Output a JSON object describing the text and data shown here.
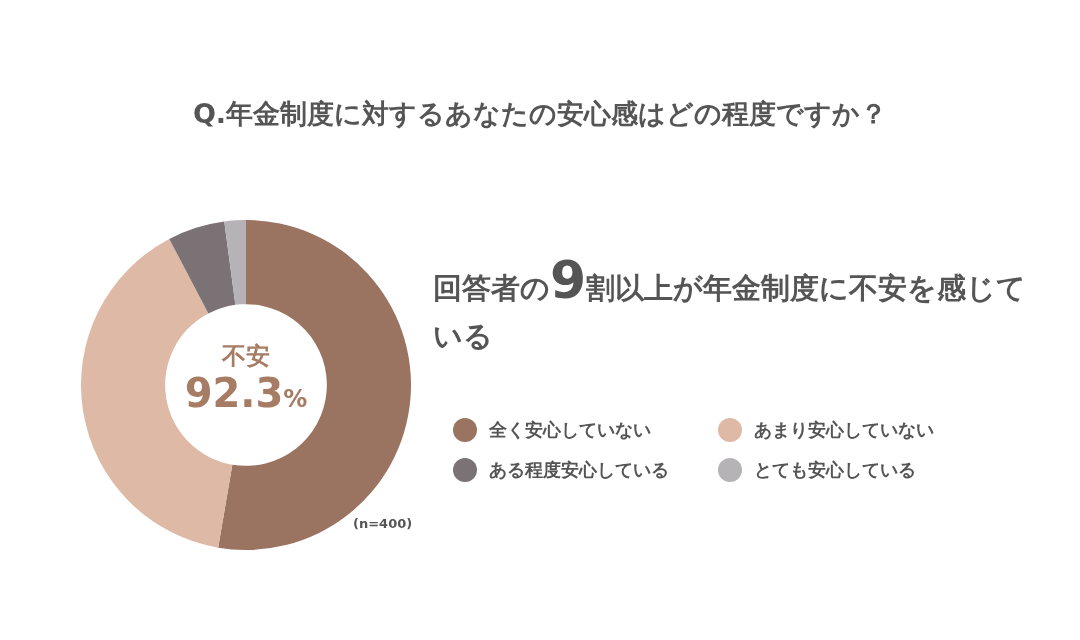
{
  "chart_data": {
    "type": "donut",
    "title": "Q.年金制度に対するあなたの安心感はどの程度ですか？",
    "subtitle": "回答者の9割以上が年金制度に不安を感じている",
    "categories": [
      "全く安心していない",
      "あまり安心していない",
      "ある程度安心している",
      "とても安心している"
    ],
    "values": [
      52.7,
      39.6,
      5.6,
      2.1
    ],
    "colors": [
      "#9b7361",
      "#deb9a6",
      "#7a7274",
      "#b5b3b5"
    ],
    "legend": "right",
    "annotations": [
      "不安",
      "92.3%",
      "(n=400)"
    ]
  }
}
